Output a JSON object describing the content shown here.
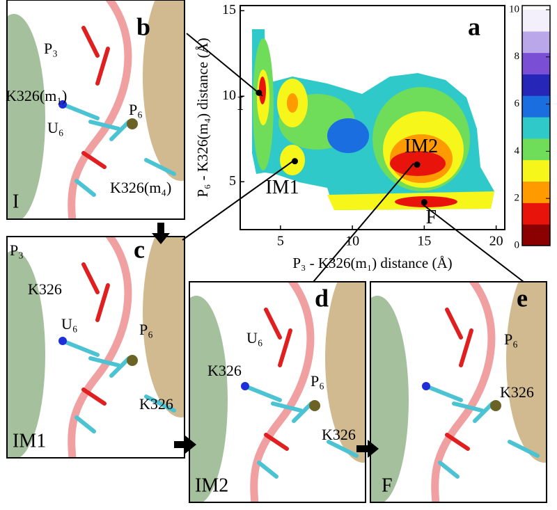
{
  "chart_data": {
    "type": "scatter",
    "panel_label": "a",
    "xlabel": "P₃ - K326(m₁) distance (Å)",
    "ylabel": "P₆ - K326(m₄) distance (Å)",
    "x": [
      3.5,
      6.0,
      14.5,
      15.0
    ],
    "values": [
      10.2,
      6.2,
      6.0,
      3.8
    ],
    "point_labels": [
      "I",
      "IM1",
      "IM2",
      "F"
    ],
    "color": "#000000",
    "xlim": [
      2.2,
      20.6
    ],
    "xticks": [
      5,
      10,
      15,
      20
    ],
    "ylim": [
      2.2,
      15.3
    ],
    "yticks": [
      5,
      10,
      15
    ],
    "colorbar": {
      "lim": [
        0,
        10
      ],
      "ticks": [
        0,
        2,
        4,
        6,
        8,
        10
      ],
      "colors": [
        "#8b0000",
        "#e8140c",
        "#ff9a00",
        "#f6f61a",
        "#6fdc5a",
        "#2fc9c9",
        "#1a6ee0",
        "#2626b8",
        "#7a4fd6",
        "#b9a7ea",
        "#f4f0fb"
      ]
    }
  },
  "panels": [
    {
      "letter": "b",
      "state": "I",
      "labels": [
        "P₃",
        "K326(m₁)",
        "U₆",
        "P₆",
        "K326(m₄)"
      ]
    },
    {
      "letter": "c",
      "state": "IM1",
      "labels": [
        "P₃",
        "K326",
        "U₆",
        "P₆",
        "K326"
      ]
    },
    {
      "letter": "d",
      "state": "IM2",
      "labels": [
        "U₆",
        "P₆",
        "K326",
        "K326"
      ]
    },
    {
      "letter": "e",
      "state": "F",
      "labels": [
        "P₆",
        "K326"
      ]
    }
  ]
}
